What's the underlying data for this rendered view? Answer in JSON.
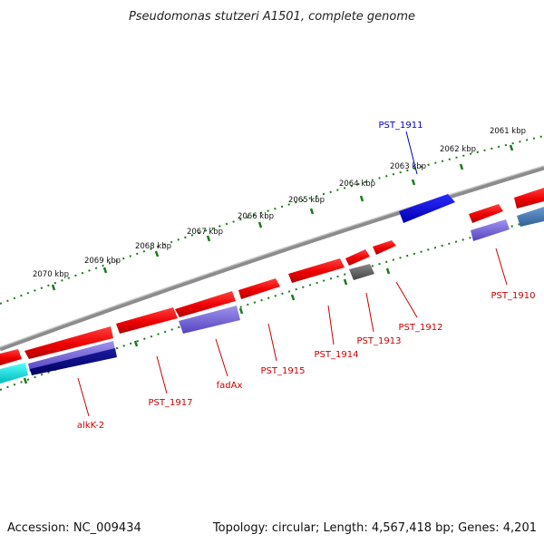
{
  "title": "Pseudomonas stutzeri A1501, complete genome",
  "footer": {
    "accession": "Accession: NC_009434",
    "summary": "Topology: circular; Length: 4,567,418 bp; Genes: 4,201"
  },
  "scale_labels": [
    "2061 kbp",
    "2062 kbp",
    "2063 kbp",
    "2064 kbp",
    "2065 kbp",
    "2066 kbp",
    "2067 kbp",
    "2068 kbp",
    "2069 kbp",
    "2070 kbp"
  ],
  "gene_labels": [
    {
      "id": "pst1911",
      "text": "PST_1911",
      "color": "#0000cc"
    },
    {
      "id": "pst1910",
      "text": "PST_1910",
      "color": "#cc0000"
    },
    {
      "id": "pst1912",
      "text": "PST_1912",
      "color": "#cc0000"
    },
    {
      "id": "pst1913",
      "text": "PST_1913",
      "color": "#cc0000"
    },
    {
      "id": "pst1914",
      "text": "PST_1914",
      "color": "#cc0000"
    },
    {
      "id": "pst1915",
      "text": "PST_1915",
      "color": "#cc0000"
    },
    {
      "id": "fadax",
      "text": "fadAx",
      "color": "#cc0000"
    },
    {
      "id": "pst1917",
      "text": "PST_1917",
      "color": "#cc0000"
    },
    {
      "id": "alkk2",
      "text": "alkK-2",
      "color": "#cc0000"
    }
  ],
  "colors": {
    "cds_forward": "#ff0000",
    "cds_reverse": "#0000ee",
    "gene_feature": "#7a6ad6",
    "backbone": "#8a8a8a",
    "tick": "#1a7a1a"
  }
}
